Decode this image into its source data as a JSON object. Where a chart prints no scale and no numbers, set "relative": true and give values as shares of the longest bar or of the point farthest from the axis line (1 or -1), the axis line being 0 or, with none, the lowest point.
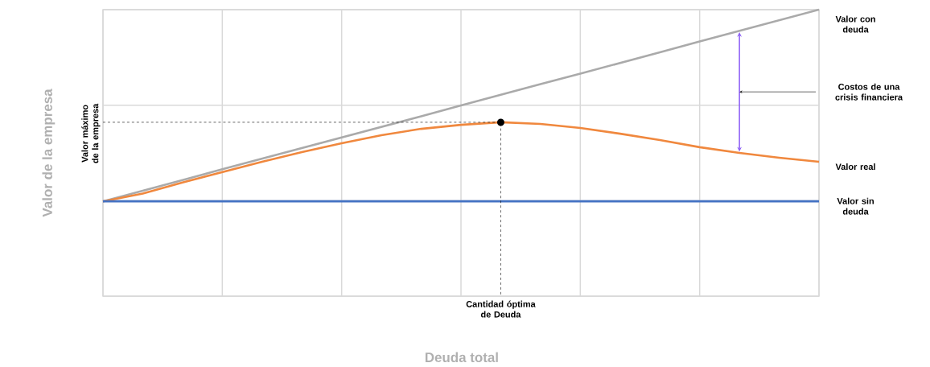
{
  "chart_data": {
    "type": "line",
    "relative": true,
    "xlabel": "Deuda total",
    "ylabel": "Valor de la empresa",
    "grid": true,
    "marker": "none",
    "categories": [
      null,
      null,
      null,
      null,
      null,
      null,
      null,
      null,
      null,
      null,
      null,
      null,
      null,
      null,
      null,
      null,
      null,
      null,
      null
    ],
    "series": [
      {
        "name": "Valor con deuda",
        "color": "#aaaaaa",
        "values": [
          0.331,
          0.368,
          0.405,
          0.443,
          0.48,
          0.517,
          0.554,
          0.591,
          0.628,
          0.666,
          0.703,
          0.74,
          0.777,
          0.814,
          0.851,
          0.889,
          0.926,
          0.963,
          1.0
        ]
      },
      {
        "name": "Valor real",
        "color": "#f0883e",
        "values": [
          0.331,
          0.358,
          0.397,
          0.433,
          0.469,
          0.503,
          0.534,
          0.562,
          0.584,
          0.598,
          0.607,
          0.601,
          0.587,
          0.567,
          0.545,
          0.52,
          0.5,
          0.483,
          0.469
        ]
      },
      {
        "name": "Valor sin deuda",
        "color": "#4472c4",
        "values": [
          0.331,
          0.331,
          0.331,
          0.331,
          0.331,
          0.331,
          0.331,
          0.331,
          0.331,
          0.331,
          0.331,
          0.331,
          0.331,
          0.331,
          0.331,
          0.331,
          0.331,
          0.331,
          0.331
        ]
      }
    ],
    "annotations": [
      "Valor máximo de la empresa",
      "Cantidad óptima de Deuda",
      "Costos de una crisis financiera"
    ]
  }
}
